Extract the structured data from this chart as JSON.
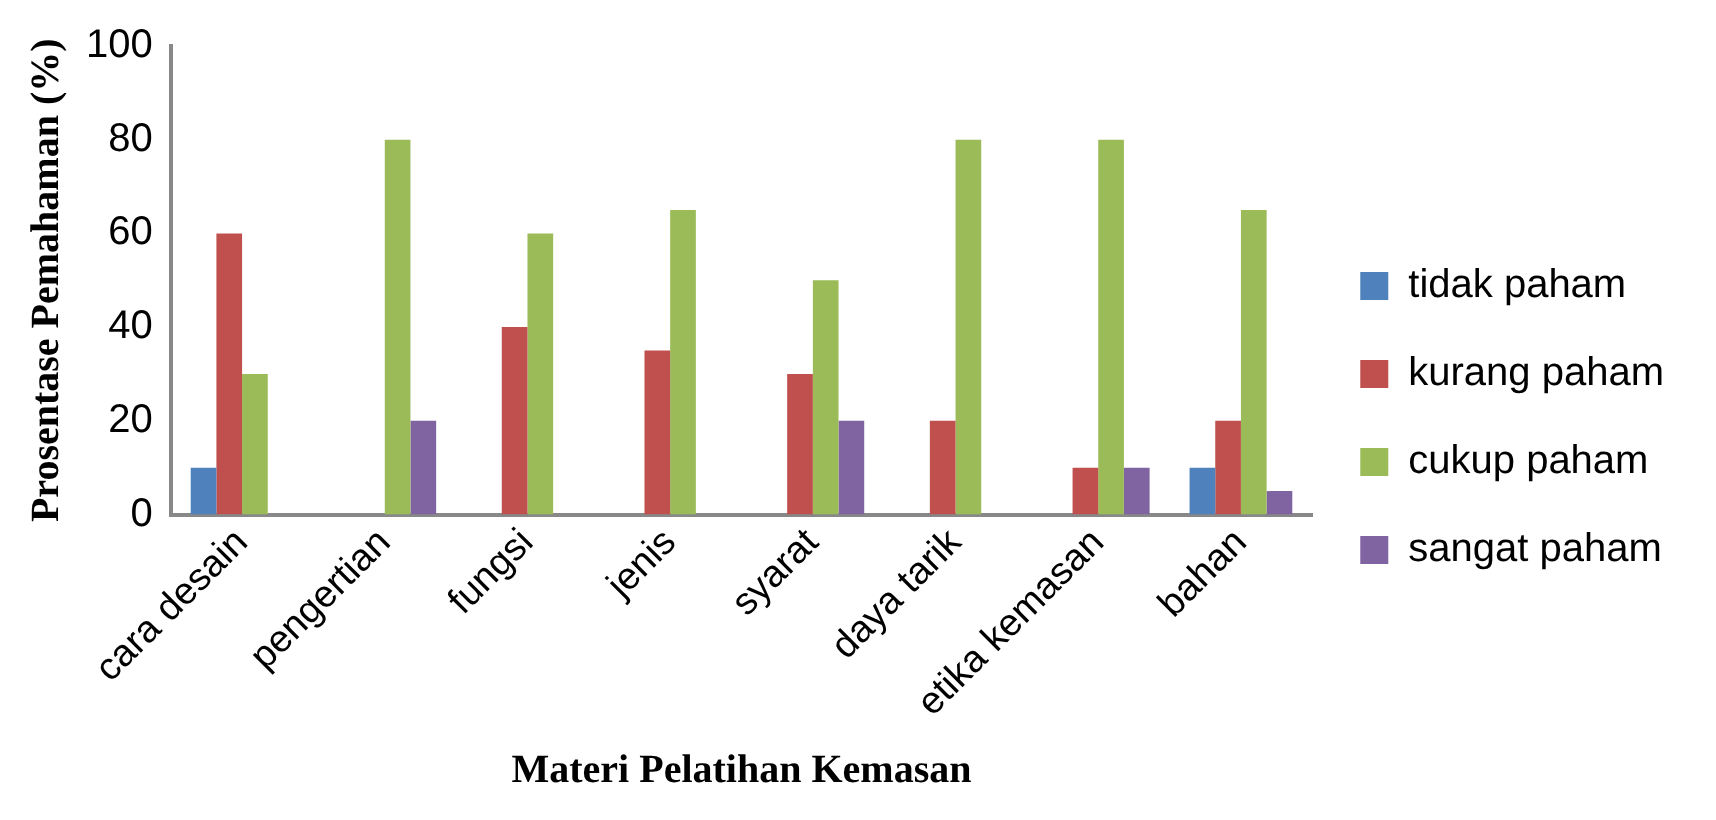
{
  "chart_data": {
    "type": "bar",
    "xlabel": "Materi Pelatihan Kemasan",
    "ylabel": "Prosentase Pemahaman (%)",
    "categories": [
      "cara desain",
      "pengertian",
      "fungsi",
      "jenis",
      "syarat",
      "daya tarik",
      "etika kemasan",
      "bahan"
    ],
    "series": [
      {
        "name": "tidak paham",
        "color": "#4f81bd",
        "values": [
          10,
          0,
          0,
          0,
          0,
          0,
          0,
          10
        ]
      },
      {
        "name": "kurang paham",
        "color": "#c0504d",
        "values": [
          60,
          0,
          40,
          35,
          30,
          20,
          10,
          20
        ]
      },
      {
        "name": "cukup paham",
        "color": "#9bbb59",
        "values": [
          30,
          80,
          60,
          65,
          50,
          80,
          80,
          65
        ]
      },
      {
        "name": "sangat paham",
        "color": "#8064a2",
        "values": [
          0,
          20,
          0,
          0,
          20,
          0,
          10,
          5
        ]
      }
    ],
    "ylim": [
      0,
      100
    ],
    "yticks": [
      0,
      20,
      40,
      60,
      80,
      100
    ],
    "grid": false,
    "legend": "right"
  }
}
